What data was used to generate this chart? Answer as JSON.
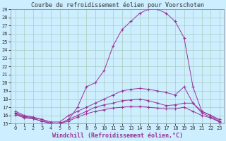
{
  "title": "Courbe du refroidissement éolien pour Voorschoten",
  "xlabel": "Windchill (Refroidissement éolien,°C)",
  "bg_color": "#cceeff",
  "grid_color": "#aaccbb",
  "line_color": "#993399",
  "xlim": [
    -0.5,
    23.5
  ],
  "ylim": [
    15,
    29
  ],
  "xticks": [
    0,
    1,
    2,
    3,
    4,
    5,
    6,
    7,
    8,
    9,
    10,
    11,
    12,
    13,
    14,
    15,
    16,
    17,
    18,
    19,
    20,
    21,
    22,
    23
  ],
  "yticks": [
    15,
    16,
    17,
    18,
    19,
    20,
    21,
    22,
    23,
    24,
    25,
    26,
    27,
    28,
    29
  ],
  "lines": [
    {
      "x": [
        0,
        1,
        2,
        3,
        4,
        5,
        6,
        7,
        8,
        9,
        10,
        11,
        12,
        13,
        14,
        15,
        16,
        17,
        18,
        19,
        20,
        21,
        22,
        23
      ],
      "y": [
        16.5,
        16.0,
        15.8,
        15.5,
        15.0,
        15.0,
        15.5,
        17.0,
        19.5,
        20.0,
        21.5,
        24.5,
        26.5,
        27.5,
        28.5,
        29.0,
        29.0,
        28.5,
        27.5,
        25.5,
        19.5,
        16.5,
        16.0,
        15.5
      ]
    },
    {
      "x": [
        0,
        1,
        2,
        3,
        4,
        5,
        6,
        7,
        8,
        9,
        10,
        11,
        12,
        13,
        14,
        15,
        16,
        17,
        18,
        19,
        20,
        21,
        22,
        23
      ],
      "y": [
        16.3,
        15.9,
        15.7,
        15.5,
        15.2,
        15.2,
        16.0,
        16.5,
        17.0,
        17.5,
        18.0,
        18.5,
        19.0,
        19.2,
        19.3,
        19.2,
        19.0,
        18.8,
        18.5,
        19.5,
        17.5,
        16.3,
        15.8,
        15.2
      ]
    },
    {
      "x": [
        0,
        1,
        2,
        3,
        4,
        5,
        6,
        7,
        8,
        9,
        10,
        11,
        12,
        13,
        14,
        15,
        16,
        17,
        18,
        19,
        20,
        21,
        22,
        23
      ],
      "y": [
        16.2,
        15.8,
        15.6,
        15.3,
        15.0,
        15.0,
        15.5,
        16.0,
        16.5,
        17.0,
        17.3,
        17.5,
        17.8,
        17.9,
        18.0,
        17.8,
        17.5,
        17.2,
        17.3,
        17.5,
        17.5,
        16.5,
        16.0,
        15.3
      ]
    },
    {
      "x": [
        0,
        1,
        2,
        3,
        4,
        5,
        6,
        7,
        8,
        9,
        10,
        11,
        12,
        13,
        14,
        15,
        16,
        17,
        18,
        19,
        20,
        21,
        22,
        23
      ],
      "y": [
        16.1,
        15.7,
        15.6,
        15.3,
        15.0,
        15.0,
        15.3,
        15.8,
        16.2,
        16.5,
        16.7,
        16.9,
        17.0,
        17.1,
        17.1,
        17.0,
        16.9,
        16.8,
        16.8,
        17.0,
        16.5,
        16.0,
        15.7,
        15.2
      ]
    }
  ],
  "tick_fontsize": 5,
  "xlabel_fontsize": 6,
  "title_fontsize": 6
}
